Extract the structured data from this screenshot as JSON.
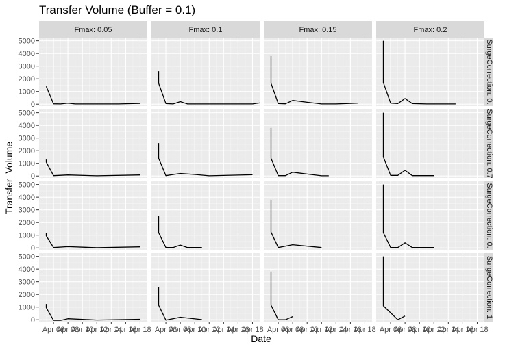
{
  "chart_data": {
    "type": "line",
    "title": "Transfer Volume (Buffer = 0.1)",
    "xlabel": "Date",
    "ylabel": "Transfer_Volume",
    "ylim": [
      -150,
      5250
    ],
    "yticks": [
      0,
      1000,
      2000,
      3000,
      4000,
      5000
    ],
    "x_domain": [
      "2020-04-04",
      "2020-04-19"
    ],
    "xticks": [
      {
        "date": "2020-04-06",
        "label": "Apr 06"
      },
      {
        "date": "2020-04-08",
        "label": "Apr 08"
      },
      {
        "date": "2020-04-10",
        "label": "Apr 10"
      },
      {
        "date": "2020-04-12",
        "label": "Apr 12"
      },
      {
        "date": "2020-04-14",
        "label": "Apr 14"
      },
      {
        "date": "2020-04-16",
        "label": "Apr 16"
      },
      {
        "date": "2020-04-18",
        "label": "Apr 18"
      }
    ],
    "col_facets": [
      "Fmax: 0.05",
      "Fmax: 0.1",
      "Fmax: 0.15",
      "Fmax: 0.2"
    ],
    "row_facets": [
      "SurgeCorrection: 0.",
      "SurgeCorrection: 0.7",
      "SurgeCorrection: 0.",
      "SurgeCorrection: 1"
    ],
    "grid": true,
    "line_color": "#000000",
    "panel_background": "#ebebeb",
    "strip_background": "#d9d9d9",
    "panels": [
      {
        "row": 0,
        "col": 0,
        "points": [
          [
            "2020-04-05",
            1400
          ],
          [
            "2020-04-06",
            30
          ],
          [
            "2020-04-07",
            20
          ],
          [
            "2020-04-08",
            80
          ],
          [
            "2020-04-09",
            20
          ],
          [
            "2020-04-12",
            20
          ],
          [
            "2020-04-15",
            20
          ],
          [
            "2020-04-18",
            60
          ]
        ]
      },
      {
        "row": 0,
        "col": 1,
        "points": [
          [
            "2020-04-05",
            2600
          ],
          [
            "2020-04-05",
            1650
          ],
          [
            "2020-04-06",
            50
          ],
          [
            "2020-04-07",
            20
          ],
          [
            "2020-04-08",
            200
          ],
          [
            "2020-04-09",
            20
          ],
          [
            "2020-04-13",
            20
          ],
          [
            "2020-04-18",
            20
          ],
          [
            "2020-04-19",
            100
          ],
          [
            "2020-04-20",
            20
          ]
        ]
      },
      {
        "row": 0,
        "col": 2,
        "points": [
          [
            "2020-04-05",
            3800
          ],
          [
            "2020-04-05",
            1650
          ],
          [
            "2020-04-06",
            50
          ],
          [
            "2020-04-07",
            30
          ],
          [
            "2020-04-08",
            300
          ],
          [
            "2020-04-10",
            150
          ],
          [
            "2020-04-12",
            20
          ],
          [
            "2020-04-14",
            20
          ],
          [
            "2020-04-17",
            80
          ]
        ]
      },
      {
        "row": 0,
        "col": 3,
        "points": [
          [
            "2020-04-05",
            5000
          ],
          [
            "2020-04-05",
            1700
          ],
          [
            "2020-04-06",
            80
          ],
          [
            "2020-04-07",
            50
          ],
          [
            "2020-04-08",
            450
          ],
          [
            "2020-04-09",
            50
          ],
          [
            "2020-04-11",
            20
          ],
          [
            "2020-04-15",
            20
          ]
        ]
      },
      {
        "row": 1,
        "col": 0,
        "points": [
          [
            "2020-04-05",
            1300
          ],
          [
            "2020-04-05",
            1100
          ],
          [
            "2020-04-06",
            30
          ],
          [
            "2020-04-08",
            80
          ],
          [
            "2020-04-12",
            20
          ],
          [
            "2020-04-18",
            80
          ]
        ]
      },
      {
        "row": 1,
        "col": 1,
        "points": [
          [
            "2020-04-05",
            2600
          ],
          [
            "2020-04-05",
            1400
          ],
          [
            "2020-04-06",
            30
          ],
          [
            "2020-04-08",
            200
          ],
          [
            "2020-04-10",
            120
          ],
          [
            "2020-04-12",
            20
          ],
          [
            "2020-04-18",
            100
          ]
        ]
      },
      {
        "row": 1,
        "col": 2,
        "points": [
          [
            "2020-04-05",
            3800
          ],
          [
            "2020-04-05",
            1400
          ],
          [
            "2020-04-06",
            30
          ],
          [
            "2020-04-07",
            30
          ],
          [
            "2020-04-08",
            300
          ],
          [
            "2020-04-10",
            150
          ],
          [
            "2020-04-12",
            20
          ],
          [
            "2020-04-13",
            20
          ]
        ]
      },
      {
        "row": 1,
        "col": 3,
        "points": [
          [
            "2020-04-05",
            5000
          ],
          [
            "2020-04-05",
            1500
          ],
          [
            "2020-04-06",
            50
          ],
          [
            "2020-04-07",
            50
          ],
          [
            "2020-04-08",
            450
          ],
          [
            "2020-04-09",
            30
          ],
          [
            "2020-04-12",
            30
          ]
        ]
      },
      {
        "row": 2,
        "col": 0,
        "points": [
          [
            "2020-04-05",
            1200
          ],
          [
            "2020-04-05",
            950
          ],
          [
            "2020-04-06",
            30
          ],
          [
            "2020-04-08",
            100
          ],
          [
            "2020-04-12",
            20
          ],
          [
            "2020-04-18",
            80
          ]
        ]
      },
      {
        "row": 2,
        "col": 1,
        "points": [
          [
            "2020-04-05",
            2500
          ],
          [
            "2020-04-05",
            1200
          ],
          [
            "2020-04-06",
            30
          ],
          [
            "2020-04-07",
            30
          ],
          [
            "2020-04-08",
            220
          ],
          [
            "2020-04-09",
            30
          ],
          [
            "2020-04-11",
            30
          ]
        ]
      },
      {
        "row": 2,
        "col": 2,
        "points": [
          [
            "2020-04-05",
            3800
          ],
          [
            "2020-04-05",
            1250
          ],
          [
            "2020-04-06",
            30
          ],
          [
            "2020-04-08",
            250
          ],
          [
            "2020-04-12",
            30
          ]
        ]
      },
      {
        "row": 2,
        "col": 3,
        "points": [
          [
            "2020-04-05",
            5000
          ],
          [
            "2020-04-05",
            1200
          ],
          [
            "2020-04-06",
            30
          ],
          [
            "2020-04-07",
            30
          ],
          [
            "2020-04-08",
            400
          ],
          [
            "2020-04-09",
            30
          ],
          [
            "2020-04-12",
            30
          ]
        ]
      },
      {
        "row": 3,
        "col": 0,
        "points": [
          [
            "2020-04-05",
            1250
          ],
          [
            "2020-04-05",
            950
          ],
          [
            "2020-04-06",
            -50
          ],
          [
            "2020-04-07",
            -50
          ],
          [
            "2020-04-08",
            80
          ],
          [
            "2020-04-12",
            -20
          ],
          [
            "2020-04-18",
            40
          ]
        ]
      },
      {
        "row": 3,
        "col": 1,
        "points": [
          [
            "2020-04-05",
            2600
          ],
          [
            "2020-04-05",
            1150
          ],
          [
            "2020-04-06",
            -30
          ],
          [
            "2020-04-08",
            200
          ],
          [
            "2020-04-11",
            10
          ]
        ]
      },
      {
        "row": 3,
        "col": 2,
        "points": [
          [
            "2020-04-05",
            3800
          ],
          [
            "2020-04-05",
            1150
          ],
          [
            "2020-04-06",
            0
          ],
          [
            "2020-04-07",
            0
          ],
          [
            "2020-04-08",
            250
          ]
        ]
      },
      {
        "row": 3,
        "col": 3,
        "points": [
          [
            "2020-04-05",
            5000
          ],
          [
            "2020-04-05",
            1100
          ],
          [
            "2020-04-07",
            0
          ],
          [
            "2020-04-08",
            300
          ]
        ]
      }
    ]
  }
}
